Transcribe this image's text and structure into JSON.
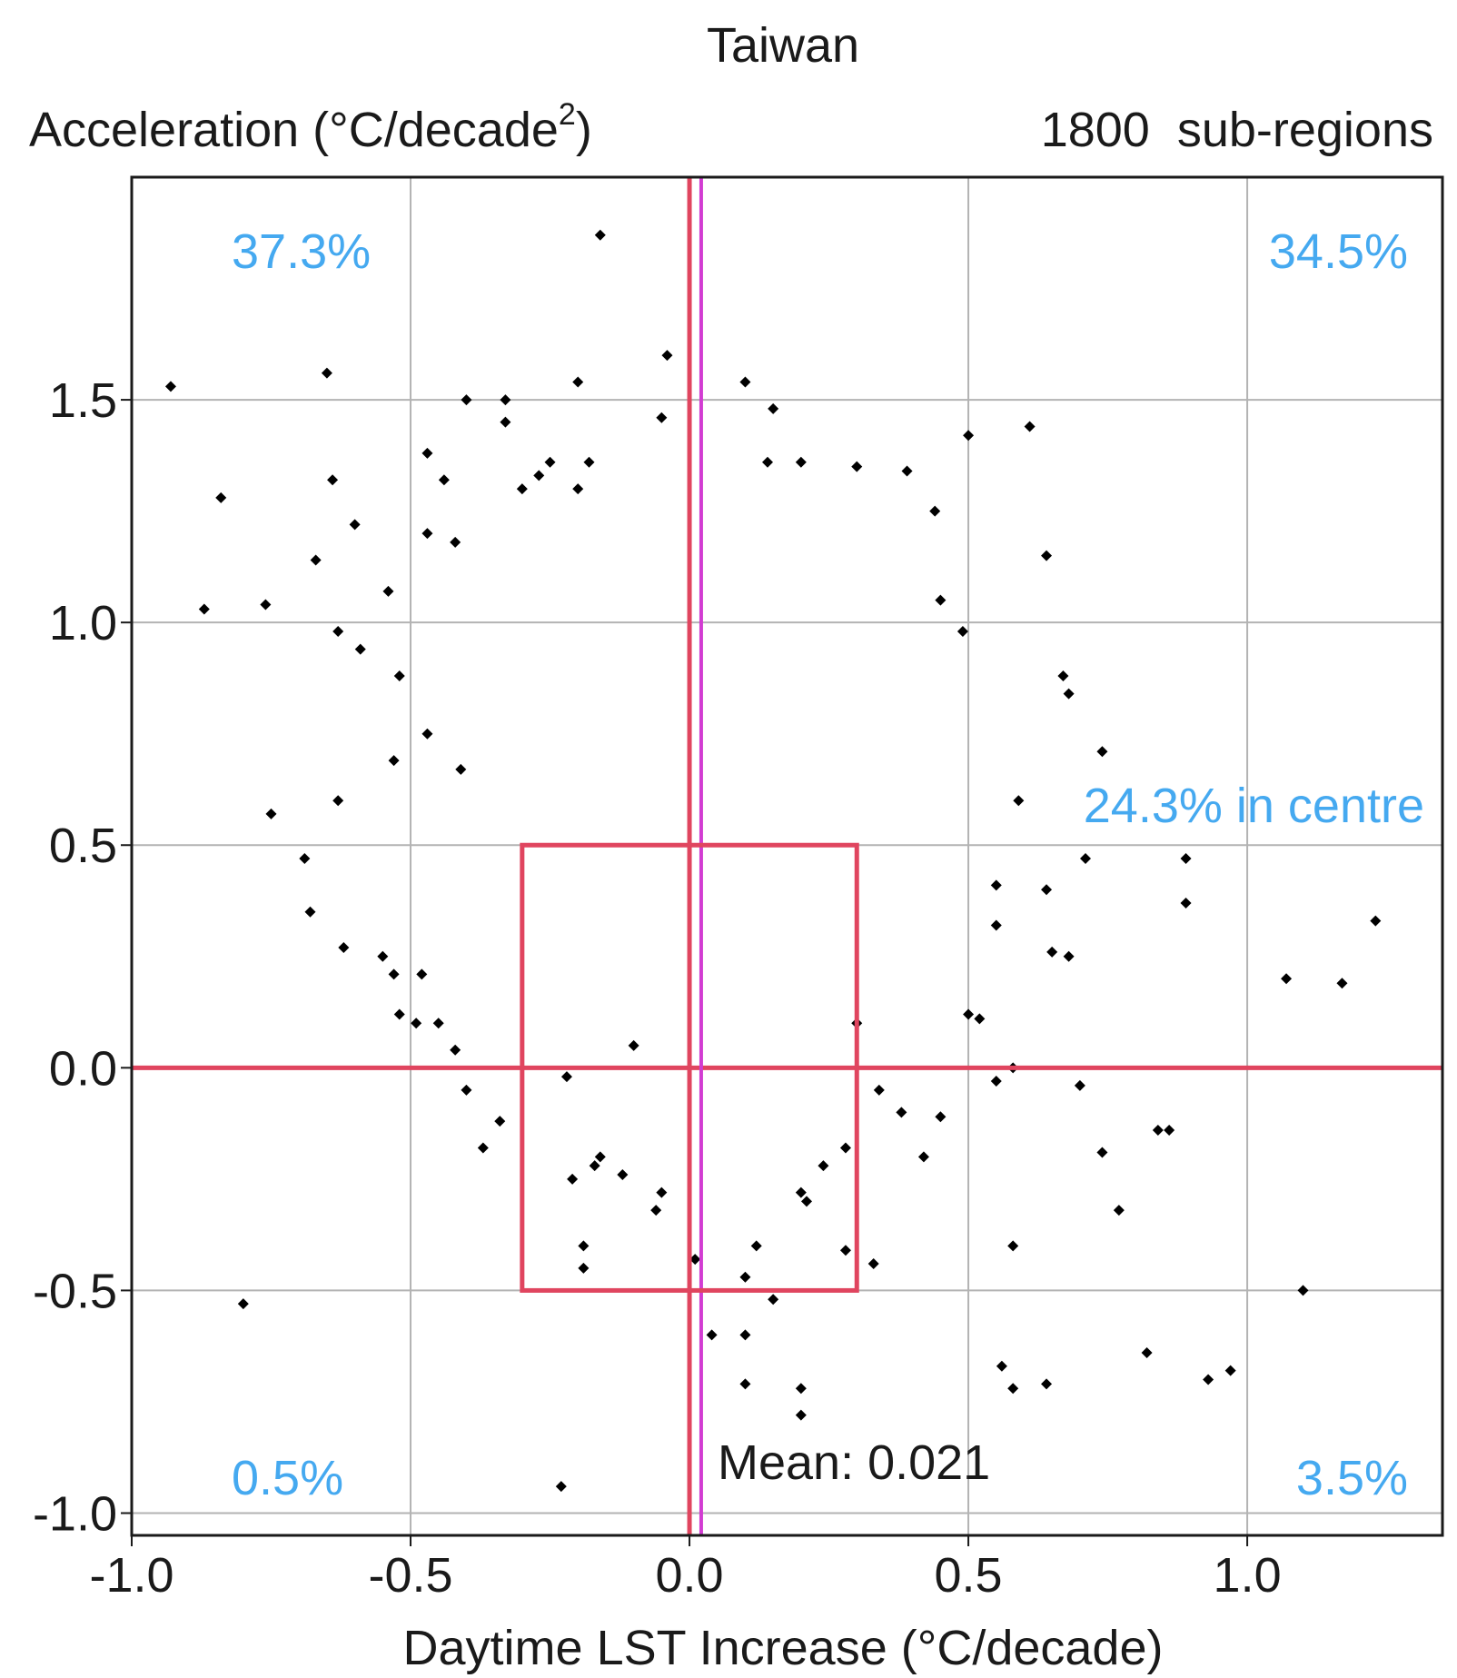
{
  "chart_data": {
    "type": "scatter",
    "title": "Taiwan",
    "subtitle_left": "Acceleration (°C/decade",
    "subtitle_sup": "2",
    "subtitle_close": ")",
    "subtitle_right": "1800  sub-regions",
    "xlabel": "Daytime LST Increase (°C/decade)",
    "xlim": [
      -1.0,
      1.35
    ],
    "ylim": [
      -1.05,
      2.0
    ],
    "xticks": [
      -1.0,
      -0.5,
      0.0,
      0.5,
      1.0
    ],
    "xtick_labels": [
      "-1.0",
      "-0.5",
      "0.0",
      "0.5",
      "1.0"
    ],
    "yticks": [
      -1.0,
      -0.5,
      0.0,
      0.5,
      1.0,
      1.5
    ],
    "ytick_labels": [
      "-1.0",
      "-0.5",
      "0.0",
      "0.5",
      "1.0",
      "1.5"
    ],
    "grid": true,
    "mean_x": 0.021,
    "mean_label": "Mean: 0.021",
    "centre_box": {
      "x": [
        -0.3,
        0.3
      ],
      "y": [
        -0.5,
        0.5
      ]
    },
    "centre_label": "24.3% in centre",
    "quadrant_labels": {
      "top_left": "37.3%",
      "top_right": "34.5%",
      "bottom_left": "0.5%",
      "bottom_right": "3.5%"
    },
    "colors": {
      "points": "#000000",
      "zero_lines": "#e0455f",
      "mean_line": "#d23cd2",
      "grid": "#b3b3b3",
      "percent_labels": "#45a9f0"
    },
    "points": [
      [
        -0.16,
        1.87
      ],
      [
        -0.93,
        1.53
      ],
      [
        -0.65,
        1.56
      ],
      [
        -0.04,
        1.6
      ],
      [
        -0.2,
        1.54
      ],
      [
        0.1,
        1.54
      ],
      [
        -0.4,
        1.5
      ],
      [
        -0.33,
        1.5
      ],
      [
        -0.33,
        1.45
      ],
      [
        0.15,
        1.48
      ],
      [
        -0.05,
        1.46
      ],
      [
        0.61,
        1.44
      ],
      [
        -0.47,
        1.38
      ],
      [
        0.5,
        1.42
      ],
      [
        -0.25,
        1.36
      ],
      [
        -0.18,
        1.36
      ],
      [
        0.14,
        1.36
      ],
      [
        0.2,
        1.36
      ],
      [
        -0.84,
        1.28
      ],
      [
        -0.64,
        1.32
      ],
      [
        -0.44,
        1.32
      ],
      [
        -0.3,
        1.3
      ],
      [
        -0.27,
        1.33
      ],
      [
        -0.2,
        1.3
      ],
      [
        0.3,
        1.35
      ],
      [
        0.39,
        1.34
      ],
      [
        0.44,
        1.25
      ],
      [
        -0.6,
        1.22
      ],
      [
        -0.67,
        1.14
      ],
      [
        -0.47,
        1.2
      ],
      [
        -0.42,
        1.18
      ],
      [
        0.64,
        1.15
      ],
      [
        -0.87,
        1.03
      ],
      [
        -0.76,
        1.04
      ],
      [
        -0.54,
        1.07
      ],
      [
        0.45,
        1.05
      ],
      [
        -0.63,
        0.98
      ],
      [
        0.49,
        0.98
      ],
      [
        -0.59,
        0.94
      ],
      [
        -0.52,
        0.88
      ],
      [
        0.67,
        0.88
      ],
      [
        0.68,
        0.84
      ],
      [
        -0.53,
        0.69
      ],
      [
        -0.47,
        0.75
      ],
      [
        0.74,
        0.71
      ],
      [
        -0.75,
        0.57
      ],
      [
        -0.63,
        0.6
      ],
      [
        -0.41,
        0.67
      ],
      [
        0.59,
        0.6
      ],
      [
        -0.69,
        0.47
      ],
      [
        -0.68,
        0.35
      ],
      [
        -0.62,
        0.27
      ],
      [
        -0.55,
        0.25
      ],
      [
        -0.53,
        0.21
      ],
      [
        -0.48,
        0.21
      ],
      [
        -0.52,
        0.12
      ],
      [
        -0.49,
        0.1
      ],
      [
        -0.45,
        0.1
      ],
      [
        -0.42,
        0.04
      ],
      [
        0.64,
        0.4
      ],
      [
        0.65,
        0.26
      ],
      [
        0.68,
        0.25
      ],
      [
        0.71,
        0.47
      ],
      [
        0.89,
        0.47
      ],
      [
        0.89,
        0.37
      ],
      [
        0.55,
        0.41
      ],
      [
        0.55,
        0.32
      ],
      [
        0.5,
        0.12
      ],
      [
        0.52,
        0.11
      ],
      [
        0.58,
        0.0
      ],
      [
        0.7,
        -0.04
      ],
      [
        0.55,
        -0.03
      ],
      [
        1.23,
        0.33
      ],
      [
        1.07,
        0.2
      ],
      [
        1.17,
        0.19
      ],
      [
        0.84,
        -0.14
      ],
      [
        0.86,
        -0.14
      ],
      [
        0.74,
        -0.19
      ],
      [
        0.77,
        -0.32
      ],
      [
        0.58,
        -0.4
      ],
      [
        1.1,
        -0.5
      ],
      [
        0.82,
        -0.64
      ],
      [
        0.56,
        -0.67
      ],
      [
        0.58,
        -0.72
      ],
      [
        0.64,
        -0.71
      ],
      [
        0.93,
        -0.7
      ],
      [
        0.97,
        -0.68
      ],
      [
        -0.8,
        -0.53
      ],
      [
        -0.23,
        -0.94
      ],
      [
        0.2,
        -0.72
      ],
      [
        0.2,
        -0.78
      ],
      [
        0.1,
        -0.6
      ],
      [
        0.04,
        -0.6
      ],
      [
        0.1,
        -0.71
      ],
      [
        0.15,
        -0.52
      ],
      [
        0.33,
        -0.44
      ],
      [
        -0.4,
        -0.05
      ],
      [
        -0.37,
        -0.18
      ],
      [
        -0.34,
        -0.12
      ],
      [
        -0.19,
        -0.4
      ],
      [
        -0.19,
        -0.45
      ],
      [
        -0.21,
        -0.25
      ],
      [
        -0.17,
        -0.22
      ],
      [
        0.01,
        -0.43
      ],
      [
        -0.22,
        -0.02
      ],
      [
        -0.05,
        -0.28
      ],
      [
        -0.06,
        -0.32
      ],
      [
        -0.12,
        -0.24
      ],
      [
        -0.16,
        -0.2
      ],
      [
        0.2,
        -0.28
      ],
      [
        0.21,
        -0.3
      ],
      [
        0.28,
        -0.41
      ],
      [
        0.24,
        -0.22
      ],
      [
        0.28,
        -0.18
      ],
      [
        0.12,
        -0.4
      ],
      [
        0.1,
        -0.47
      ],
      [
        -0.1,
        0.05
      ],
      [
        0.3,
        0.1
      ],
      [
        0.38,
        -0.1
      ],
      [
        0.45,
        -0.11
      ],
      [
        0.42,
        -0.2
      ],
      [
        0.34,
        -0.05
      ]
    ]
  }
}
